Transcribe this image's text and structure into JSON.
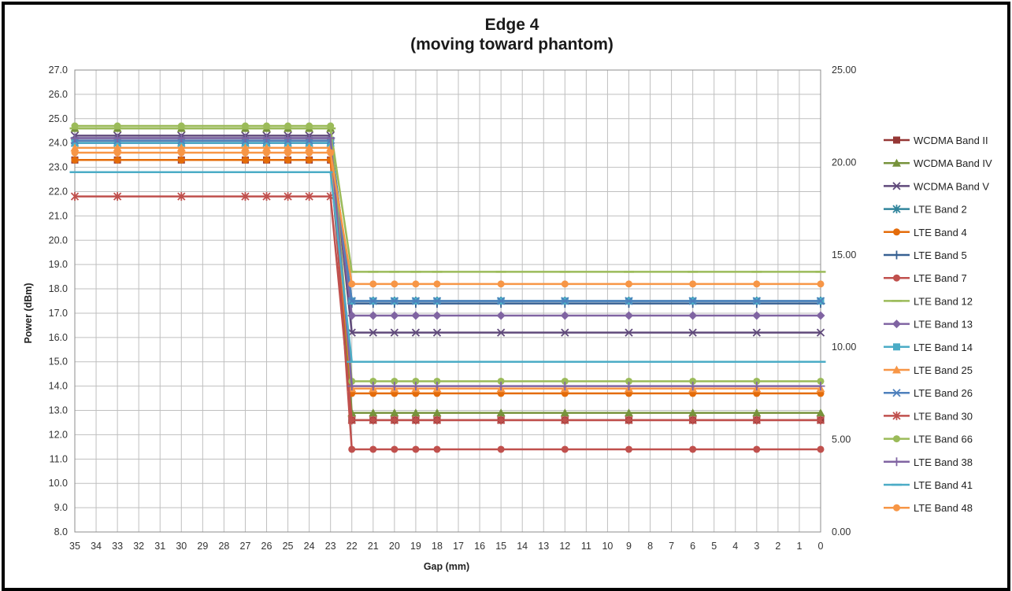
{
  "chart_data": {
    "type": "line",
    "title_line1": "Edge 4",
    "title_line2": "(moving toward phantom)",
    "xlabel": "Gap (mm)",
    "ylabel": "Power (dBm)",
    "ylim": [
      8.0,
      27.0
    ],
    "y_ticks": [
      "8.0",
      "9.0",
      "10.0",
      "11.0",
      "12.0",
      "13.0",
      "14.0",
      "15.0",
      "16.0",
      "17.0",
      "18.0",
      "19.0",
      "20.0",
      "21.0",
      "22.0",
      "23.0",
      "24.0",
      "25.0",
      "26.0",
      "27.0"
    ],
    "y2lim": [
      0.0,
      25.0
    ],
    "y2_ticks": [
      "0.00",
      "5.00",
      "10.00",
      "15.00",
      "20.00",
      "25.00"
    ],
    "x_ticks": [
      "35",
      "34",
      "33",
      "32",
      "31",
      "30",
      "29",
      "28",
      "27",
      "26",
      "25",
      "24",
      "23",
      "22",
      "21",
      "20",
      "19",
      "18",
      "17",
      "16",
      "15",
      "14",
      "13",
      "12",
      "11",
      "10",
      "9",
      "8",
      "7",
      "6",
      "5",
      "4",
      "3",
      "2",
      "1",
      "0"
    ],
    "x_reversed": true,
    "grid": true,
    "legend_position": "right",
    "x": [
      35,
      33,
      30,
      27,
      26,
      25,
      24,
      23,
      22,
      21,
      20,
      19,
      18,
      15,
      12,
      9,
      6,
      3,
      0
    ],
    "series": [
      {
        "name": "WCDMA Band II",
        "color": "#953735",
        "marker": "square",
        "high": 23.3,
        "low": 12.6
      },
      {
        "name": "WCDMA Band IV",
        "color": "#77933C",
        "marker": "triangle",
        "high": 24.6,
        "low": 12.9
      },
      {
        "name": "WCDMA Band V",
        "color": "#604A7B",
        "marker": "x",
        "high": 24.3,
        "low": 16.2
      },
      {
        "name": "LTE Band 2",
        "color": "#31859C",
        "marker": "star",
        "high": 24.0,
        "low": 17.5
      },
      {
        "name": "LTE Band 4",
        "color": "#E46C0A",
        "marker": "circle",
        "high": 23.3,
        "low": 13.7
      },
      {
        "name": "LTE Band 5",
        "color": "#376092",
        "marker": "plus",
        "high": 24.2,
        "low": 17.4
      },
      {
        "name": "LTE Band 7",
        "color": "#C0504D",
        "marker": "circle",
        "high": 24.1,
        "low": 11.4
      },
      {
        "name": "LTE Band 12",
        "color": "#9BBB59",
        "marker": "dash",
        "high": 24.6,
        "low": 18.7
      },
      {
        "name": "LTE Band 13",
        "color": "#8064A2",
        "marker": "diamond",
        "high": 24.0,
        "low": 16.9
      },
      {
        "name": "LTE Band 14",
        "color": "#4BACC6",
        "marker": "square",
        "high": 24.0,
        "low": 17.5
      },
      {
        "name": "LTE Band 25",
        "color": "#F79646",
        "marker": "triangle",
        "high": 23.8,
        "low": 13.9
      },
      {
        "name": "LTE Band 26",
        "color": "#4F81BD",
        "marker": "x",
        "high": 24.1,
        "low": 17.5
      },
      {
        "name": "LTE Band 30",
        "color": "#C0504D",
        "marker": "star",
        "high": 21.8,
        "low": 12.6
      },
      {
        "name": "LTE Band 66",
        "color": "#9BBB59",
        "marker": "circle",
        "high": 24.7,
        "low": 14.2
      },
      {
        "name": "LTE Band 38",
        "color": "#8064A2",
        "marker": "plus",
        "high": 24.2,
        "low": 14.0
      },
      {
        "name": "LTE Band 41",
        "color": "#4BACC6",
        "marker": "dash",
        "high": 22.8,
        "low": 15.0
      },
      {
        "name": "LTE Band 48",
        "color": "#F79646",
        "marker": "circle",
        "high": 23.6,
        "low": 18.2
      }
    ]
  }
}
